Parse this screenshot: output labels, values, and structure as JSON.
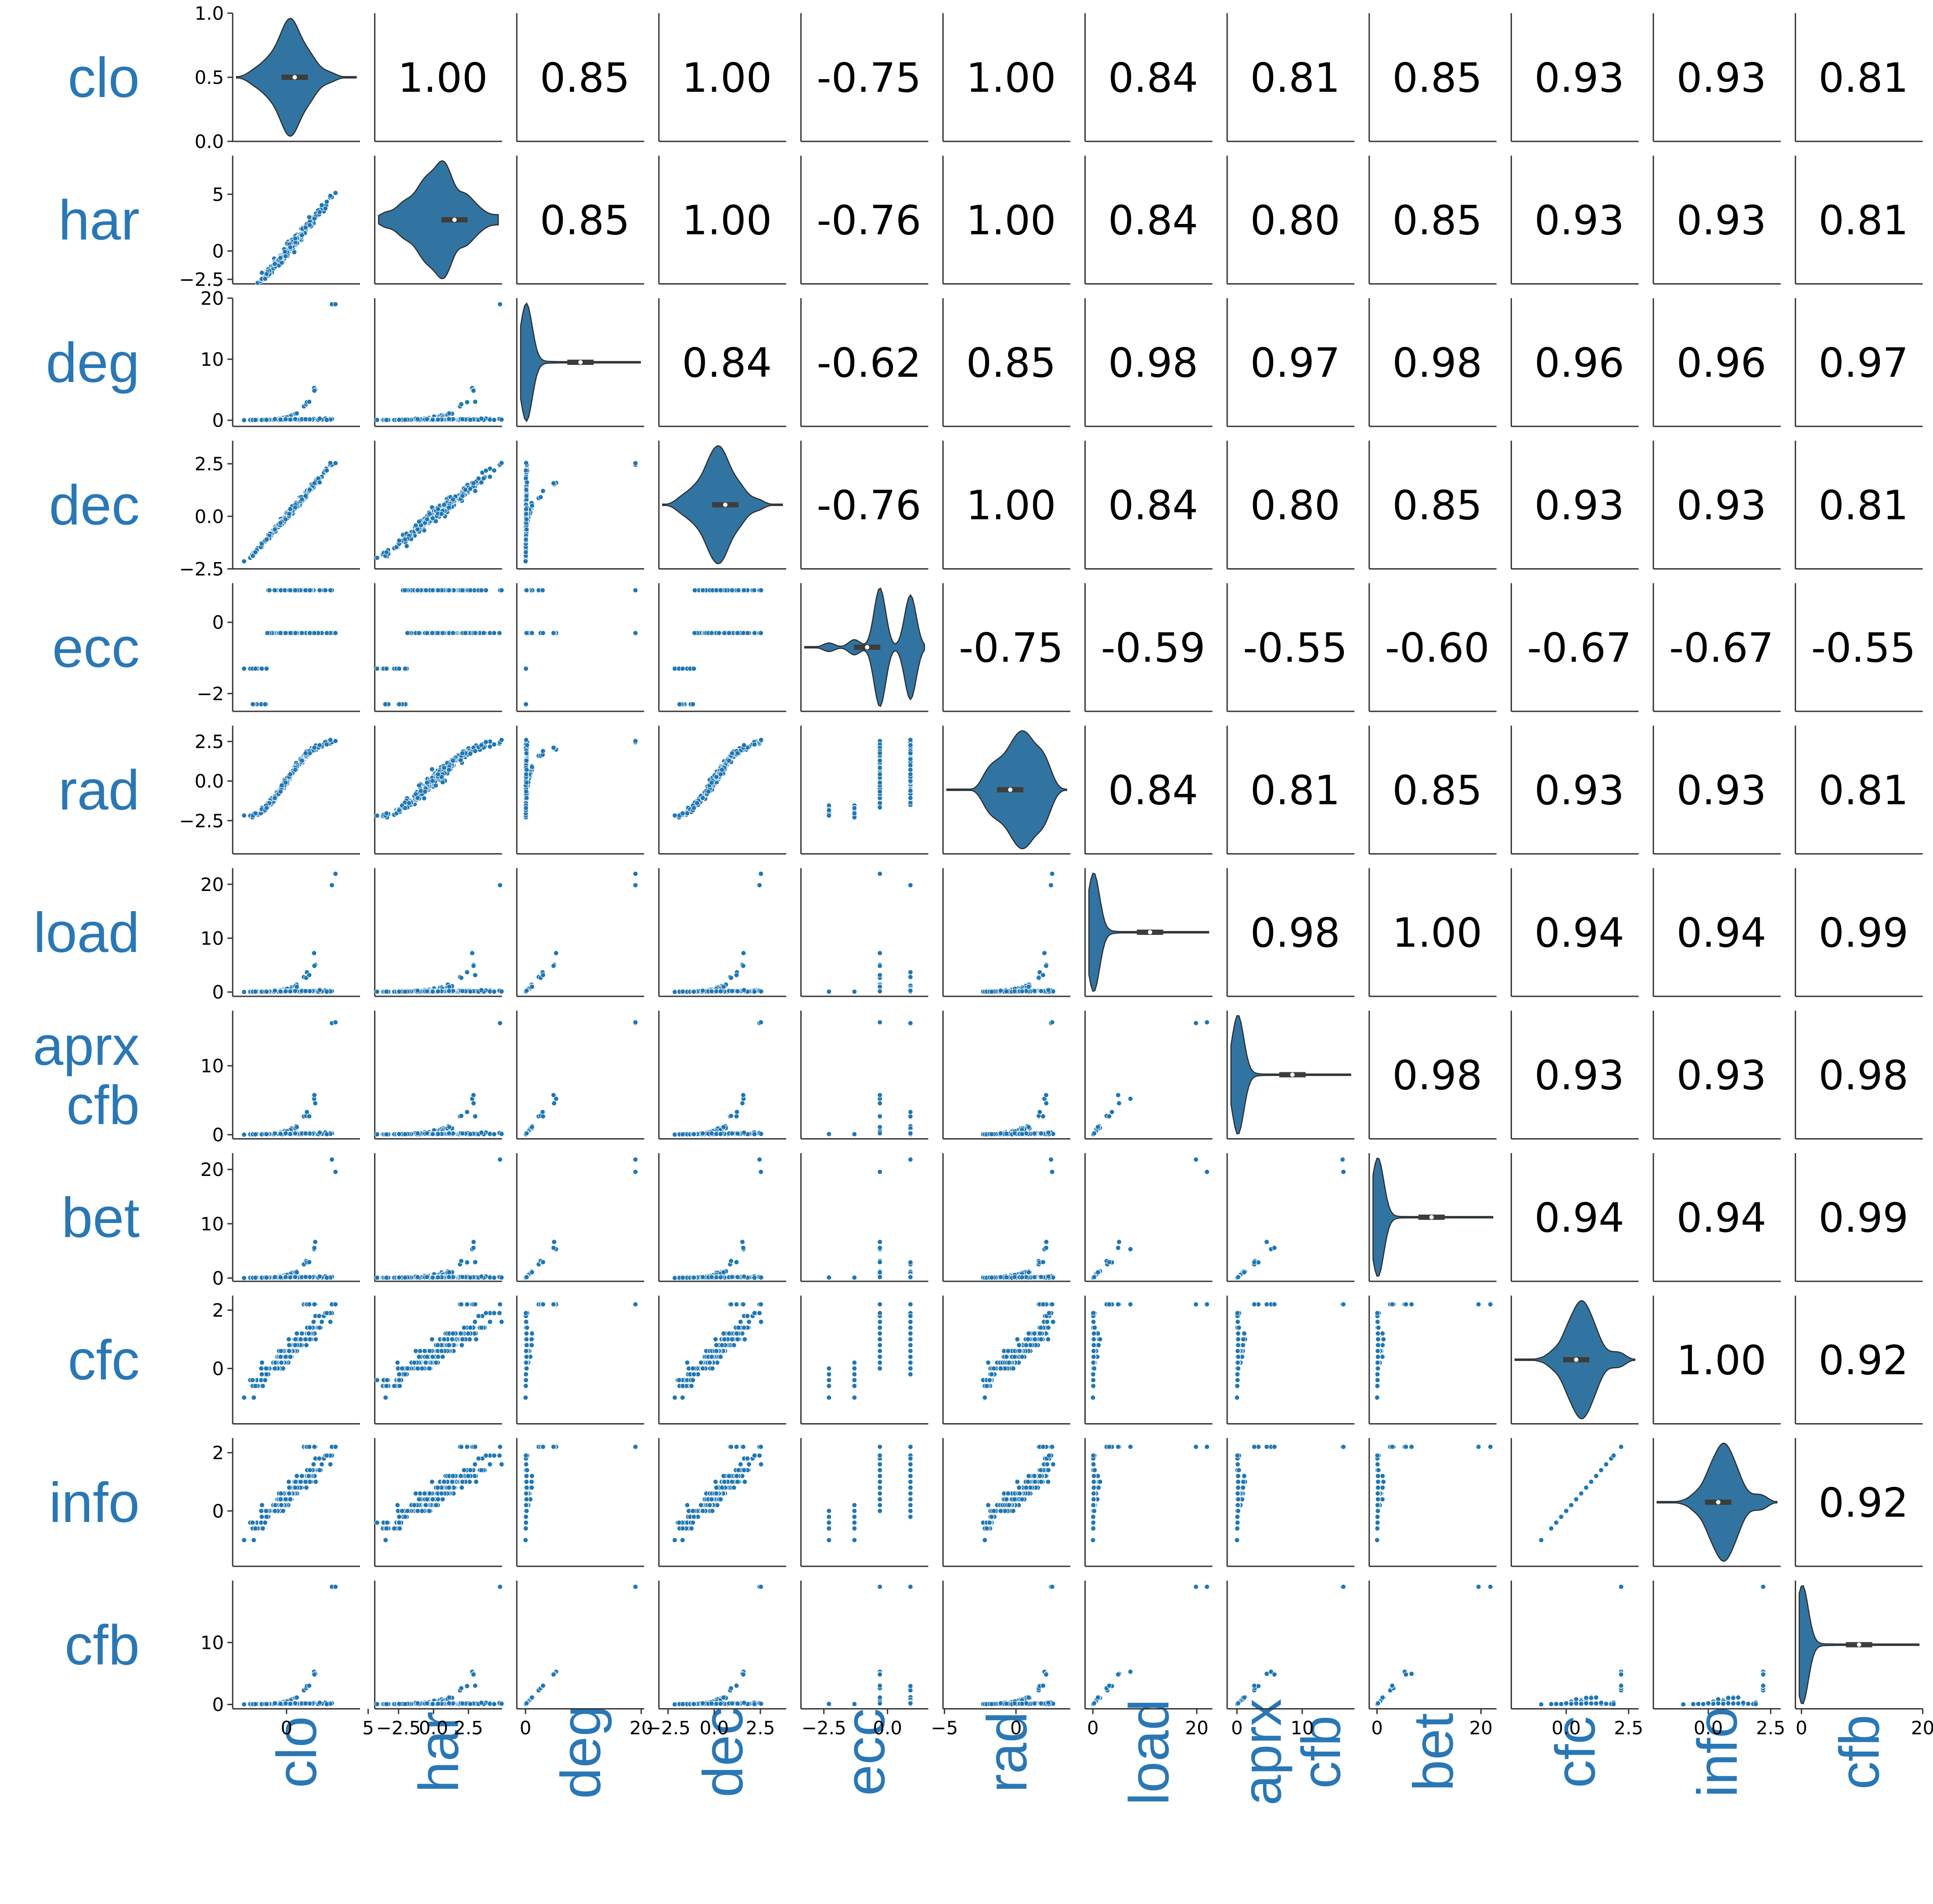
{
  "chart_data": {
    "type": "scatter",
    "title": "",
    "variables": [
      "clo",
      "har",
      "deg",
      "dec",
      "ecc",
      "rad",
      "load",
      "aprx cfb",
      "bet",
      "cfc",
      "info",
      "cfb"
    ],
    "row_labels": [
      "clo",
      "har",
      "deg",
      "dec",
      "ecc",
      "rad",
      "load",
      "aprx\ncfb",
      "bet",
      "cfc",
      "info",
      "cfb"
    ],
    "col_labels": [
      "clo",
      "har",
      "deg",
      "dec",
      "ecc",
      "rad",
      "load",
      "aprx\ncfb",
      "bet",
      "cfc",
      "info",
      "cfb"
    ],
    "upper_triangle": "pearson_correlation",
    "diagonal": "violin",
    "lower_triangle": "scatter",
    "correlations": [
      [
        null,
        "1.00",
        "0.85",
        "1.00",
        "-0.75",
        "1.00",
        "0.84",
        "0.81",
        "0.85",
        "0.93",
        "0.93",
        "0.81"
      ],
      [
        null,
        null,
        "0.85",
        "1.00",
        "-0.76",
        "1.00",
        "0.84",
        "0.80",
        "0.85",
        "0.93",
        "0.93",
        "0.81"
      ],
      [
        null,
        null,
        null,
        "0.84",
        "-0.62",
        "0.85",
        "0.98",
        "0.97",
        "0.98",
        "0.96",
        "0.96",
        "0.97"
      ],
      [
        null,
        null,
        null,
        null,
        "-0.76",
        "1.00",
        "0.84",
        "0.80",
        "0.85",
        "0.93",
        "0.93",
        "0.81"
      ],
      [
        null,
        null,
        null,
        null,
        null,
        "-0.75",
        "-0.59",
        "-0.55",
        "-0.60",
        "-0.67",
        "-0.67",
        "-0.55"
      ],
      [
        null,
        null,
        null,
        null,
        null,
        null,
        "0.84",
        "0.81",
        "0.85",
        "0.93",
        "0.93",
        "0.81"
      ],
      [
        null,
        null,
        null,
        null,
        null,
        null,
        null,
        "0.98",
        "1.00",
        "0.94",
        "0.94",
        "0.99"
      ],
      [
        null,
        null,
        null,
        null,
        null,
        null,
        null,
        null,
        "0.98",
        "0.93",
        "0.93",
        "0.98"
      ],
      [
        null,
        null,
        null,
        null,
        null,
        null,
        null,
        null,
        null,
        "0.94",
        "0.94",
        "0.99"
      ],
      [
        null,
        null,
        null,
        null,
        null,
        null,
        null,
        null,
        null,
        null,
        "1.00",
        "0.92"
      ],
      [
        null,
        null,
        null,
        null,
        null,
        null,
        null,
        null,
        null,
        null,
        null,
        "0.92"
      ],
      [
        null,
        null,
        null,
        null,
        null,
        null,
        null,
        null,
        null,
        null,
        null,
        null
      ]
    ],
    "x_ranges": [
      [
        -3.3,
        4.5
      ],
      [
        -4.2,
        4.9
      ],
      [
        -1.5,
        20.5
      ],
      [
        -3.0,
        3.9
      ],
      [
        -3.4,
        1.6
      ],
      [
        -5.1,
        3.8
      ],
      [
        -1.5,
        23
      ],
      [
        -1.5,
        18
      ],
      [
        -1.5,
        23
      ],
      [
        -2.2,
        2.9
      ],
      [
        -2.2,
        2.9
      ],
      [
        -1,
        20
      ]
    ],
    "x_ticks": [
      {
        "values": [
          0,
          5
        ],
        "labels": [
          "0",
          "5"
        ]
      },
      {
        "values": [
          -2.5,
          0.0,
          2.5
        ],
        "labels": [
          "−2.5",
          "0.0",
          "2.5"
        ]
      },
      {
        "values": [
          0,
          20
        ],
        "labels": [
          "0",
          "20"
        ]
      },
      {
        "values": [
          -2.5,
          0.0,
          2.5
        ],
        "labels": [
          "−2.5",
          "0.0",
          "2.5"
        ]
      },
      {
        "values": [
          -2.5,
          0.0
        ],
        "labels": [
          "−2.5",
          "0.0"
        ]
      },
      {
        "values": [
          -5,
          0
        ],
        "labels": [
          "−5",
          "0"
        ]
      },
      {
        "values": [
          0,
          20
        ],
        "labels": [
          "0",
          "20"
        ]
      },
      {
        "values": [
          0,
          10
        ],
        "labels": [
          "0",
          "10"
        ]
      },
      {
        "values": [
          0,
          20
        ],
        "labels": [
          "0",
          "20"
        ]
      },
      {
        "values": [
          0.0,
          2.5
        ],
        "labels": [
          "0.0",
          "2.5"
        ]
      },
      {
        "values": [
          0.0,
          2.5
        ],
        "labels": [
          "0.0",
          "2.5"
        ]
      },
      {
        "values": [
          0,
          20
        ],
        "labels": [
          "0",
          "20"
        ]
      }
    ],
    "y_ranges": [
      [
        0,
        1
      ],
      [
        -2.9,
        8.4
      ],
      [
        -1,
        20
      ],
      [
        -2.5,
        3.6
      ],
      [
        -2.5,
        1.1
      ],
      [
        -4.6,
        3.5
      ],
      [
        -0.8,
        23
      ],
      [
        -0.6,
        18
      ],
      [
        -0.6,
        23
      ],
      [
        -1.9,
        2.5
      ],
      [
        -1.9,
        2.5
      ],
      [
        -0.7,
        20
      ]
    ],
    "y_ticks": [
      {
        "values": [
          0.0,
          0.5,
          1.0
        ],
        "labels": [
          "0.0",
          "0.5",
          "1.0"
        ]
      },
      {
        "values": [
          -2.5,
          0,
          5
        ],
        "labels": [
          "−2.5",
          "0",
          "5"
        ]
      },
      {
        "values": [
          0,
          10,
          20
        ],
        "labels": [
          "0",
          "10",
          "20"
        ]
      },
      {
        "values": [
          -2.5,
          0.0,
          2.5
        ],
        "labels": [
          "−2.5",
          "0.0",
          "2.5"
        ]
      },
      {
        "values": [
          -2,
          0
        ],
        "labels": [
          "−2",
          "0"
        ]
      },
      {
        "values": [
          -2.5,
          0.0,
          2.5
        ],
        "labels": [
          "−2.5",
          "0.0",
          "2.5"
        ]
      },
      {
        "values": [
          0,
          10,
          20
        ],
        "labels": [
          "0",
          "10",
          "20"
        ]
      },
      {
        "values": [
          0,
          10
        ],
        "labels": [
          "0",
          "10"
        ]
      },
      {
        "values": [
          0,
          10,
          20
        ],
        "labels": [
          "0",
          "10",
          "20"
        ]
      },
      {
        "values": [
          0,
          2
        ],
        "labels": [
          "0",
          "2"
        ]
      },
      {
        "values": [
          0,
          2
        ],
        "labels": [
          "0",
          "2"
        ]
      },
      {
        "values": [
          0,
          10
        ],
        "labels": [
          "0",
          "10"
        ]
      }
    ],
    "violin_centers": [
      0.5,
      1.5,
      9.5,
      0.6,
      -0.8,
      -0.4,
      11,
      8.5,
      10.5,
      0.4,
      0.4,
      9.5
    ],
    "grid": false,
    "legend": "none",
    "colors": {
      "point": "#1f77b4",
      "violin": "#3274a1",
      "label": "#2a77b5",
      "text": "#000000",
      "axis": "#333333"
    }
  }
}
